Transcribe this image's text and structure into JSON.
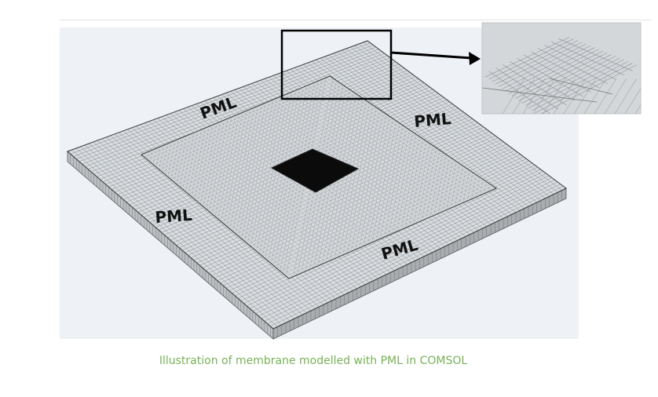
{
  "figure": {
    "labels": {
      "pml_top": "PML",
      "pml_right": "PML",
      "pml_left": "PML",
      "pml_bottom": "PML"
    },
    "colors": {
      "panel_background": "#eef2f7",
      "mesh_fill": "#d9dde0",
      "mesh_line": "#6f7377",
      "label_text": "#111111",
      "caption_text": "#77b257"
    }
  },
  "caption": "Illustration of membrane modelled with PML in COMSOL"
}
